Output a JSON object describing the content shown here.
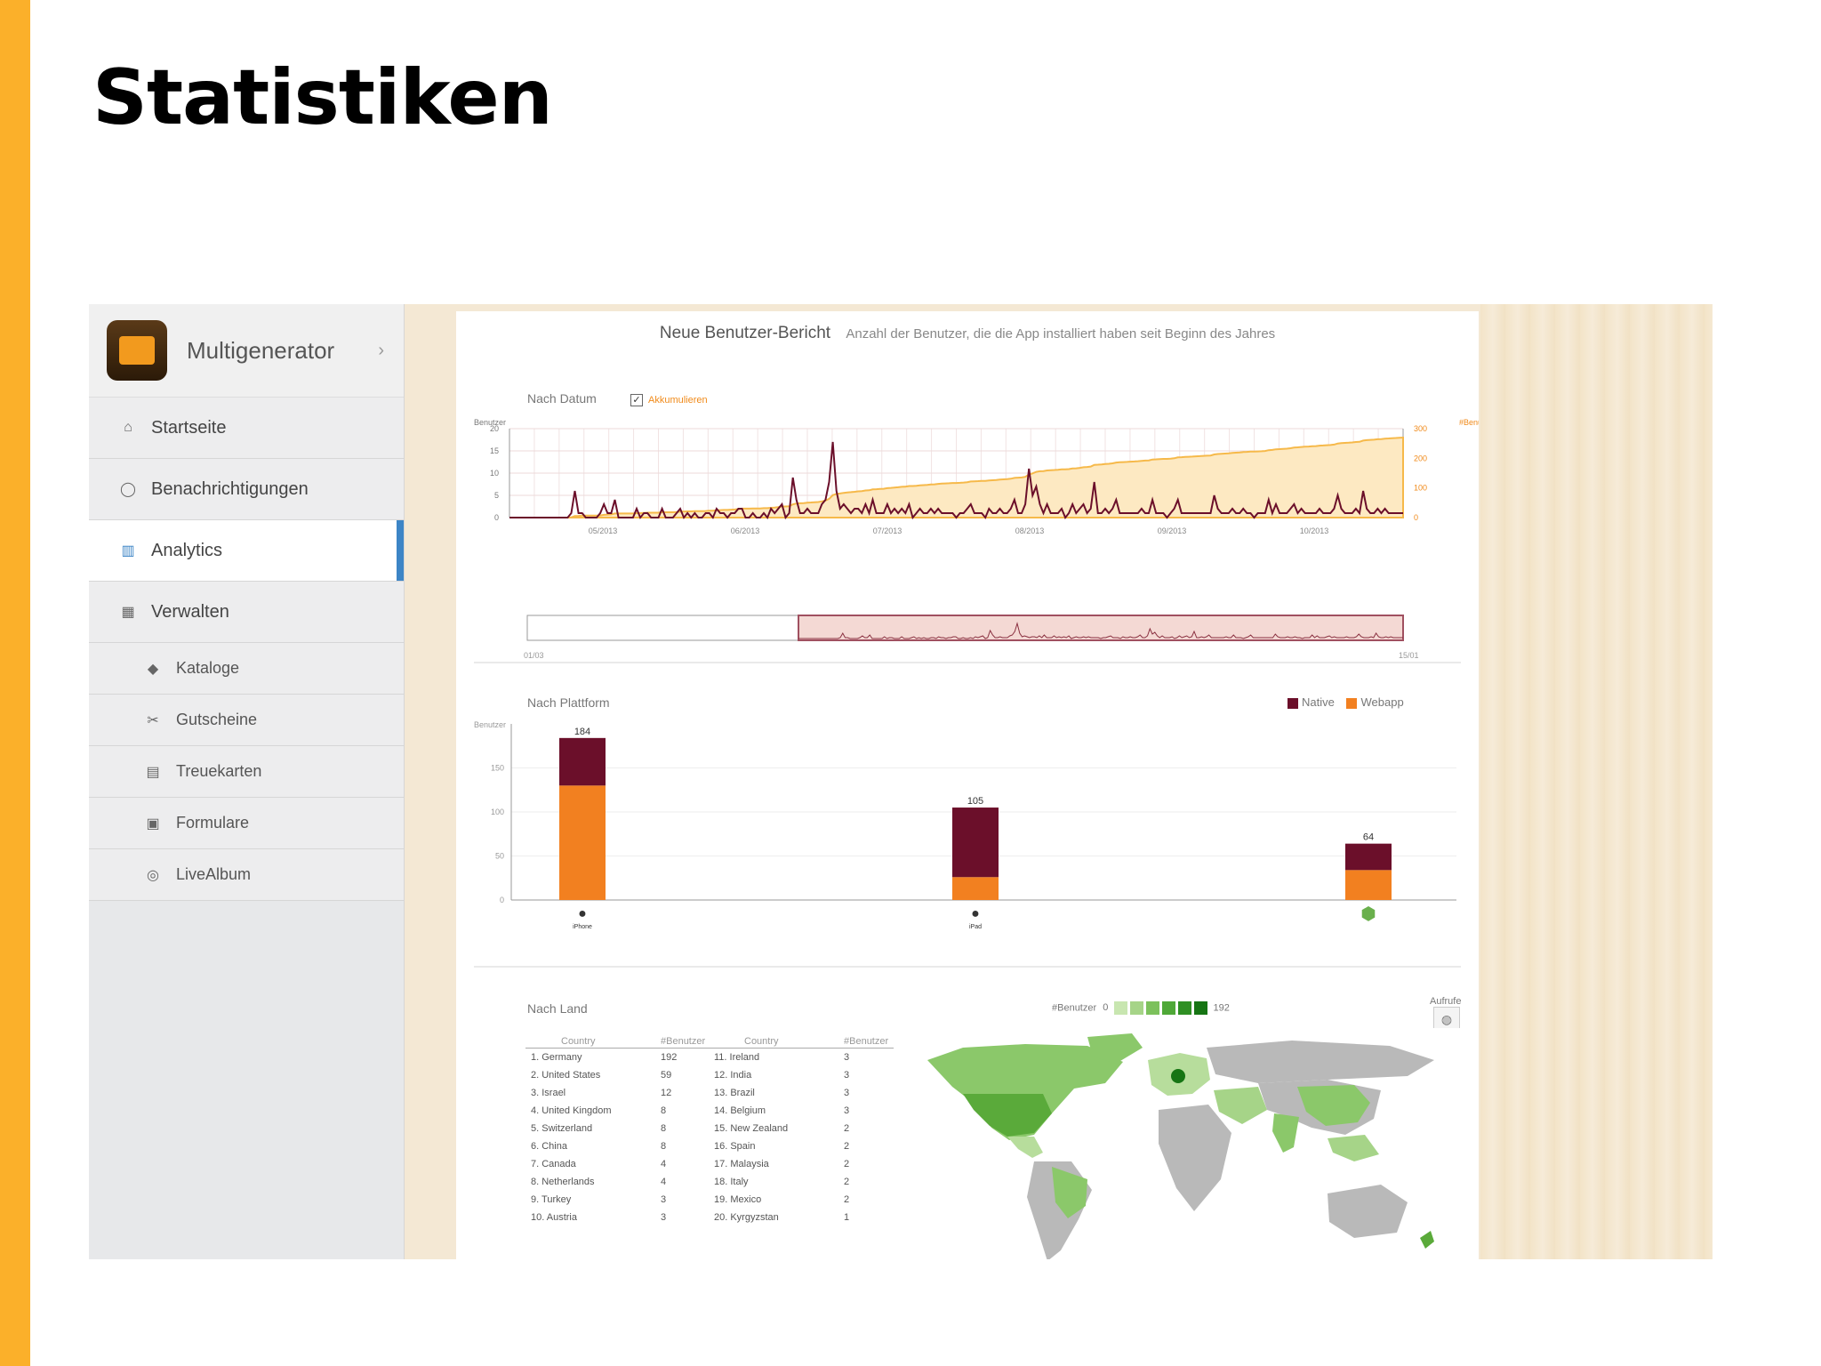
{
  "slide": {
    "title": "Statistiken"
  },
  "sidebar": {
    "brand": "Multigenerator",
    "items": [
      {
        "label": "Startseite",
        "icon": "home-icon",
        "glyph": "⌂"
      },
      {
        "label": "Benachrichtigungen",
        "icon": "chat-icon",
        "glyph": "◯"
      },
      {
        "label": "Analytics",
        "icon": "chart-icon",
        "glyph": "▥"
      },
      {
        "label": "Verwalten",
        "icon": "grid-icon",
        "glyph": "▦"
      }
    ],
    "subitems": [
      {
        "label": "Kataloge",
        "icon": "tag-icon",
        "glyph": "◆"
      },
      {
        "label": "Gutscheine",
        "icon": "scissors-icon",
        "glyph": "✂"
      },
      {
        "label": "Treuekarten",
        "icon": "card-icon",
        "glyph": "▤"
      },
      {
        "label": "Formulare",
        "icon": "form-icon",
        "glyph": "▣"
      },
      {
        "label": "LiveAlbum",
        "icon": "camera-icon",
        "glyph": "◎"
      }
    ]
  },
  "report": {
    "title": "Neue Benutzer-Bericht",
    "subtitle": "Anzahl der Benutzer, die die App installiert haben seit Beginn des Jahres",
    "by_date": {
      "label": "Nach Datum",
      "toggle": "Akkumulieren",
      "left_axis_label": "Benutzer",
      "right_axis_label": "#Benutzer",
      "left_ticks": [
        "20",
        "15",
        "10",
        "5",
        "0"
      ],
      "right_ticks": [
        "300",
        "200",
        "100",
        "0"
      ],
      "x_ticks": [
        "05/2013",
        "06/2013",
        "07/2013",
        "08/2013",
        "09/2013",
        "10/2013"
      ],
      "range_start": "01/03",
      "range_end": "15/01"
    },
    "by_platform": {
      "label": "Nach Plattform",
      "axis_label": "Benutzer",
      "legend": [
        "Native",
        "Webapp"
      ],
      "platform_labels": [
        "iPhone",
        "iPad",
        ""
      ]
    },
    "by_country": {
      "label": "Nach Land",
      "scale_label": "#Benutzer",
      "scale_min": "0",
      "scale_max": "192",
      "view_label": "Aufrufe",
      "col_country": "Country",
      "col_users": "#Benutzer",
      "left_rows": [
        [
          "1. Germany",
          "192"
        ],
        [
          "2. United States",
          "59"
        ],
        [
          "3. Israel",
          "12"
        ],
        [
          "4. United Kingdom",
          "8"
        ],
        [
          "5. Switzerland",
          "8"
        ],
        [
          "6. China",
          "8"
        ],
        [
          "7. Canada",
          "4"
        ],
        [
          "8. Netherlands",
          "4"
        ],
        [
          "9. Turkey",
          "3"
        ],
        [
          "10. Austria",
          "3"
        ]
      ],
      "right_rows": [
        [
          "11. Ireland",
          "3"
        ],
        [
          "12. India",
          "3"
        ],
        [
          "13. Brazil",
          "3"
        ],
        [
          "14. Belgium",
          "3"
        ],
        [
          "15. New Zealand",
          "2"
        ],
        [
          "16. Spain",
          "2"
        ],
        [
          "17. Malaysia",
          "2"
        ],
        [
          "18. Italy",
          "2"
        ],
        [
          "19. Mexico",
          "2"
        ],
        [
          "20. Kyrgyzstan",
          "1"
        ]
      ]
    }
  },
  "colors": {
    "accent": "#fbb02a",
    "native": "#6b0f2a",
    "webapp": "#f28020",
    "cumulative": "#f6b94a",
    "map_green": "#5aaa3a"
  },
  "chart_data": [
    {
      "type": "line",
      "title": "Nach Datum",
      "ylabel": "Benutzer",
      "ylim": [
        0,
        20
      ],
      "x_range": [
        "05/2013",
        "10/2013"
      ],
      "series": [
        {
          "values": [
            0,
            0,
            0,
            0,
            0,
            0,
            0,
            0,
            0,
            0,
            0,
            0,
            0,
            0,
            0,
            0,
            0,
            1,
            6,
            1,
            1,
            0,
            0,
            0,
            0,
            1,
            3,
            1,
            1,
            4,
            0,
            0,
            0,
            0,
            0,
            2,
            0,
            1,
            1,
            0,
            0,
            0,
            2,
            0,
            0,
            0,
            1,
            2,
            0,
            1,
            0,
            1,
            0,
            0,
            1,
            1,
            0,
            2,
            1,
            1,
            0,
            1,
            1,
            2,
            2,
            0,
            0,
            1,
            0,
            0,
            1,
            0,
            2,
            1,
            2,
            3,
            0,
            1,
            9,
            4,
            1,
            1,
            2,
            1,
            1,
            1,
            3,
            4,
            8,
            17,
            6,
            2,
            3,
            2,
            1,
            2,
            2,
            1,
            3,
            1,
            4,
            1,
            1,
            1,
            3,
            1,
            2,
            1,
            2,
            1,
            3,
            0,
            1,
            2,
            1,
            1,
            2,
            1,
            2,
            1,
            1,
            1,
            1,
            0,
            1,
            1,
            2,
            3,
            1,
            1,
            1,
            0,
            2,
            1,
            1,
            2,
            1,
            1,
            2,
            4,
            1,
            1,
            3,
            11,
            5,
            7,
            3,
            1,
            3,
            1,
            1,
            1,
            2,
            0,
            1,
            3,
            1,
            2,
            3,
            1,
            2,
            8,
            1,
            1,
            2,
            1,
            2,
            4,
            1,
            1,
            1,
            1,
            1,
            1,
            2,
            1,
            1,
            4,
            1,
            1,
            1,
            0,
            1,
            2,
            4,
            1,
            1,
            1,
            1,
            1,
            1,
            1,
            1,
            1,
            5,
            2,
            1,
            1,
            1,
            2,
            1,
            1,
            2,
            1,
            1,
            0,
            1,
            1,
            1,
            4,
            1,
            3,
            1,
            1,
            1,
            2,
            3,
            1,
            2,
            1,
            1,
            1,
            1,
            2,
            1,
            1,
            1,
            2,
            5,
            2,
            1,
            1,
            1,
            2,
            1,
            6,
            2,
            1,
            1,
            2,
            1,
            2,
            1,
            1,
            1,
            1,
            1
          ]
        }
      ]
    },
    {
      "type": "bar",
      "title": "Nach Plattform",
      "categories": [
        "iPhone",
        "iPad",
        "Android"
      ],
      "series": [
        {
          "name": "Native",
          "values": [
            54,
            79,
            30
          ]
        },
        {
          "name": "Webapp",
          "values": [
            130,
            26,
            34
          ]
        }
      ],
      "totals": [
        184,
        105,
        64
      ],
      "ylabel": "Benutzer",
      "ylim": [
        0,
        200
      ],
      "y_ticks": [
        0,
        50,
        100,
        150
      ]
    },
    {
      "type": "table",
      "title": "Nach Land",
      "columns": [
        "Country",
        "#Benutzer"
      ],
      "rows": [
        [
          "Germany",
          192
        ],
        [
          "United States",
          59
        ],
        [
          "Israel",
          12
        ],
        [
          "United Kingdom",
          8
        ],
        [
          "Switzerland",
          8
        ],
        [
          "China",
          8
        ],
        [
          "Canada",
          4
        ],
        [
          "Netherlands",
          4
        ],
        [
          "Turkey",
          3
        ],
        [
          "Austria",
          3
        ],
        [
          "Ireland",
          3
        ],
        [
          "India",
          3
        ],
        [
          "Brazil",
          3
        ],
        [
          "Belgium",
          3
        ],
        [
          "New Zealand",
          2
        ],
        [
          "Spain",
          2
        ],
        [
          "Malaysia",
          2
        ],
        [
          "Italy",
          2
        ],
        [
          "Mexico",
          2
        ],
        [
          "Kyrgyzstan",
          1
        ]
      ]
    }
  ]
}
